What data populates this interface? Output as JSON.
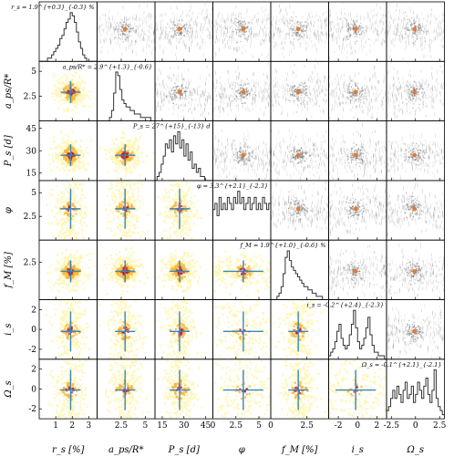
{
  "chart_data": {
    "type": "corner",
    "parameters": [
      {
        "key": "rs",
        "label": "r",
        "sub": "s",
        "unit": "[%]",
        "range": [
          0,
          3.5
        ],
        "ticks": [
          1,
          2,
          3
        ],
        "yticks": [],
        "truth": 1.9,
        "title": "r_s = 1.9^{+0.3}_{-0.3} %",
        "hist": [
          0,
          0,
          0,
          0,
          1,
          1,
          2,
          3,
          4,
          5,
          7,
          8,
          10,
          12,
          13,
          15,
          14,
          12,
          9,
          6,
          4,
          2,
          1,
          0,
          0,
          0,
          0,
          0
        ]
      },
      {
        "key": "aps",
        "label": "a",
        "sub": "ps",
        "unit": "/R*",
        "range": [
          0,
          6
        ],
        "ticks": [
          2.5,
          5
        ],
        "yticks": [
          2.5,
          5
        ],
        "truth": 2.9,
        "title": "a_ps/R* = 2.9^{+1.3}_{-0.6}",
        "hist": [
          0,
          0,
          0,
          0,
          0,
          0,
          1,
          3,
          8,
          14,
          13,
          9,
          6,
          5,
          4,
          4,
          3,
          3,
          2,
          2,
          2,
          1,
          1,
          1,
          1,
          1,
          0,
          0
        ]
      },
      {
        "key": "Ps",
        "label": "P",
        "sub": "s",
        "unit": "[d]",
        "range": [
          10,
          50
        ],
        "ticks": [
          15,
          30,
          45
        ],
        "yticks": [
          15,
          30,
          45
        ],
        "truth": 27,
        "title": "P_s = 27^{+15}_{-13} d",
        "hist": [
          0,
          1,
          2,
          4,
          6,
          9,
          8,
          10,
          7,
          11,
          9,
          12,
          8,
          10,
          6,
          9,
          5,
          7,
          3,
          4,
          2,
          3,
          1,
          1,
          0,
          0,
          0,
          0
        ]
      },
      {
        "key": "phi",
        "label": "φ",
        "sub": "",
        "unit": "",
        "range": [
          0,
          6.28
        ],
        "ticks": [
          0,
          2.5,
          5
        ],
        "yticks": [
          2.5,
          5
        ],
        "truth": 3.3,
        "title": "φ = 3.3^{+2.1}_{-2.3}",
        "hist": [
          5,
          6,
          4,
          7,
          5,
          6,
          5,
          7,
          6,
          5,
          7,
          6,
          8,
          6,
          7,
          5,
          6,
          7,
          5,
          6,
          7,
          5,
          6,
          5,
          7,
          6,
          5,
          6
        ]
      },
      {
        "key": "fM",
        "label": "f",
        "sub": "M",
        "unit": "[%]",
        "range": [
          0,
          4
        ],
        "ticks": [
          0,
          2.5
        ],
        "yticks": [
          2.5
        ],
        "truth": 1.9,
        "title": "f_M = 1.9^{+1.0}_{-0.6} %",
        "hist": [
          0,
          0,
          0,
          1,
          2,
          4,
          8,
          13,
          15,
          12,
          10,
          9,
          8,
          7,
          6,
          5,
          4,
          4,
          3,
          3,
          2,
          2,
          1,
          1,
          1,
          0,
          0,
          0
        ]
      },
      {
        "key": "is",
        "label": "i",
        "sub": "s",
        "unit": "",
        "range": [
          -3,
          3
        ],
        "ticks": [
          -2,
          0,
          2
        ],
        "yticks": [
          -2,
          0,
          2
        ],
        "truth": -0.2,
        "title": "i_s = -0.2^{+2.4}_{-2.3}",
        "hist": [
          1,
          2,
          3,
          5,
          8,
          10,
          6,
          4,
          3,
          4,
          7,
          10,
          14,
          9,
          5,
          3,
          4,
          6,
          9,
          12,
          7,
          4,
          2,
          2,
          1,
          1,
          1,
          0
        ]
      },
      {
        "key": "Os",
        "label": "Ω",
        "sub": "s",
        "unit": "",
        "range": [
          -3,
          3
        ],
        "ticks": [
          -2.5,
          0,
          2.5
        ],
        "yticks": [
          -2,
          0,
          2
        ],
        "truth": -0.1,
        "title": "Ω_s = -0.1^{+2.1}_{-2.1}",
        "hist": [
          2,
          3,
          5,
          7,
          5,
          8,
          6,
          4,
          7,
          9,
          5,
          6,
          8,
          4,
          6,
          9,
          7,
          5,
          8,
          10,
          6,
          4,
          7,
          12,
          5,
          3,
          2,
          1
        ]
      }
    ],
    "axis_labels": [
      "r_s [%]",
      "a_ps/R*",
      "P_s [d]",
      "φ",
      "f_M [%]",
      "i_s",
      "Ω_s"
    ],
    "upper_triangle": "grayscale posterior samples with orange truth marker",
    "lower_triangle": "yellow-red 2D density with blue crosshair error bars",
    "colors": {
      "hist": "#333333",
      "density_low": "#fff6b0",
      "density_mid": "#f7b733",
      "density_high": "#c0141c",
      "crosshair": "#3a86b5",
      "marker": "#e07b39",
      "gray": "#444444"
    }
  }
}
